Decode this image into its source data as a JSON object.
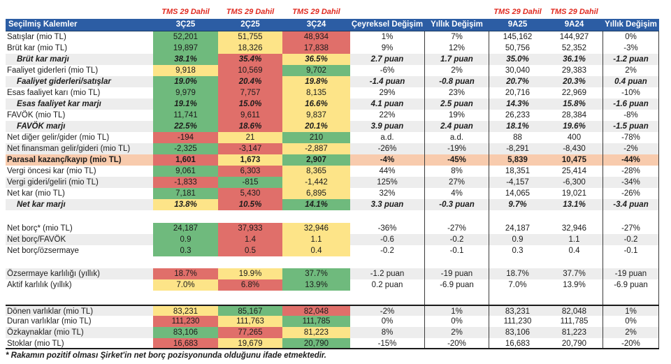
{
  "colors": {
    "green": "#6fba7d",
    "yellow": "#fde488",
    "red": "#e06f6a",
    "orange": "#f8cbad",
    "header_blue": "#2c5da4",
    "tms_red": "#e02a20",
    "stripe": "#ededed"
  },
  "chart_data": {
    "type": "table",
    "tms_note": "TMS 29 Dahil",
    "columns": [
      "Seçilmiş Kalemler",
      "3Ç25",
      "2Ç25",
      "3Ç24",
      "Çeyreksel Değişim",
      "Yıllık Değişim",
      "9A25",
      "9A24",
      "Yıllık Değişim"
    ],
    "rows": [
      {
        "label": "Satışlar (mio TL)",
        "variant": "normal",
        "stripe": false,
        "qcolors": [
          "green",
          "yellow",
          "red"
        ],
        "cells": [
          "52,201",
          "51,755",
          "48,934",
          "1%",
          "7%",
          "145,162",
          "144,927",
          "0%"
        ]
      },
      {
        "label": "Brüt kar (mio TL)",
        "variant": "normal",
        "stripe": false,
        "qcolors": [
          "green",
          "yellow",
          "red"
        ],
        "cells": [
          "19,897",
          "18,326",
          "17,838",
          "9%",
          "12%",
          "50,756",
          "52,352",
          "-3%"
        ]
      },
      {
        "label": "Brüt kar marjı",
        "variant": "margin",
        "stripe": true,
        "qcolors": [
          "green",
          "red",
          "yellow"
        ],
        "cells": [
          "38.1%",
          "35.4%",
          "36.5%",
          "2.7 puan",
          "1.7 puan",
          "35.0%",
          "36.1%",
          "-1.2 puan"
        ]
      },
      {
        "label": "Faaliyet giderleri (mio TL)",
        "variant": "normal",
        "stripe": false,
        "qcolors": [
          "yellow",
          "red",
          "green"
        ],
        "cells": [
          "9,918",
          "10,569",
          "9,702",
          "-6%",
          "2%",
          "30,040",
          "29,383",
          "2%"
        ]
      },
      {
        "label": "Faaliyet giderleri/satışlar",
        "variant": "margin",
        "stripe": true,
        "qcolors": [
          "green",
          "red",
          "yellow"
        ],
        "cells": [
          "19.0%",
          "20.4%",
          "19.8%",
          "-1.4 puan",
          "-0.8 puan",
          "20.7%",
          "20.3%",
          "0.4 puan"
        ]
      },
      {
        "label": "Esas faaliyet karı (mio TL)",
        "variant": "normal",
        "stripe": false,
        "qcolors": [
          "green",
          "red",
          "yellow"
        ],
        "cells": [
          "9,979",
          "7,757",
          "8,135",
          "29%",
          "23%",
          "20,716",
          "22,969",
          "-10%"
        ]
      },
      {
        "label": "Esas faaliyet kar marjı",
        "variant": "margin",
        "stripe": true,
        "qcolors": [
          "green",
          "red",
          "yellow"
        ],
        "cells": [
          "19.1%",
          "15.0%",
          "16.6%",
          "4.1 puan",
          "2.5 puan",
          "14.3%",
          "15.8%",
          "-1.6 puan"
        ]
      },
      {
        "label": "FAVÖK (mio TL)",
        "variant": "normal",
        "stripe": false,
        "qcolors": [
          "green",
          "red",
          "yellow"
        ],
        "cells": [
          "11,741",
          "9,611",
          "9,837",
          "22%",
          "19%",
          "26,233",
          "28,384",
          "-8%"
        ]
      },
      {
        "label": "FAVÖK marjı",
        "variant": "margin",
        "stripe": true,
        "qcolors": [
          "green",
          "red",
          "yellow"
        ],
        "cells": [
          "22.5%",
          "18.6%",
          "20.1%",
          "3.9 puan",
          "2.4 puan",
          "18.1%",
          "19.6%",
          "-1.5 puan"
        ]
      },
      {
        "label": "Net diğer gelir/gider (mio TL)",
        "variant": "normal",
        "stripe": false,
        "qcolors": [
          "red",
          "yellow",
          "green"
        ],
        "cells": [
          "-194",
          "21",
          "210",
          "a.d.",
          "a.d.",
          "88",
          "400",
          "-78%"
        ]
      },
      {
        "label": "Net finansman gelir/gideri (mio TL)",
        "variant": "normal",
        "stripe": true,
        "qcolors": [
          "green",
          "red",
          "yellow"
        ],
        "cells": [
          "-2,325",
          "-3,147",
          "-2,887",
          "-26%",
          "-19%",
          "-8,291",
          "-8,430",
          "-2%"
        ]
      },
      {
        "label": "Parasal kazanç/kayıp (mio TL)",
        "variant": "highlight",
        "stripe": false,
        "qcolors": [
          "red",
          "yellow",
          "green"
        ],
        "cells": [
          "1,601",
          "1,673",
          "2,907",
          "-4%",
          "-45%",
          "5,839",
          "10,475",
          "-44%"
        ]
      },
      {
        "label": "Vergi öncesi kar (mio TL)",
        "variant": "normal",
        "stripe": false,
        "qcolors": [
          "green",
          "red",
          "yellow"
        ],
        "cells": [
          "9,061",
          "6,303",
          "8,365",
          "44%",
          "8%",
          "18,351",
          "25,414",
          "-28%"
        ]
      },
      {
        "label": "Vergi gideri/geliri (mio TL)",
        "variant": "normal",
        "stripe": true,
        "qcolors": [
          "red",
          "green",
          "yellow"
        ],
        "cells": [
          "-1,833",
          "-815",
          "-1,442",
          "125%",
          "27%",
          "-4,157",
          "-6,300",
          "-34%"
        ]
      },
      {
        "label": "Net kar (mio TL)",
        "variant": "normal",
        "stripe": false,
        "qcolors": [
          "green",
          "red",
          "yellow"
        ],
        "cells": [
          "7,181",
          "5,430",
          "6,895",
          "32%",
          "4%",
          "14,065",
          "19,021",
          "-26%"
        ]
      },
      {
        "label": "Net kar marjı",
        "variant": "margin",
        "stripe": true,
        "qcolors": [
          "yellow",
          "red",
          "green"
        ],
        "cells": [
          "13.8%",
          "10.5%",
          "14.1%",
          "3.3 puan",
          "-0.3 puan",
          "9.7%",
          "13.1%",
          "-3.4 puan"
        ]
      },
      {
        "spacer": true,
        "h": 18
      },
      {
        "label": "Net borç* (mio TL)",
        "variant": "normal",
        "stripe": false,
        "qcolors": [
          "green",
          "red",
          "yellow"
        ],
        "cells": [
          "24,187",
          "37,933",
          "32,946",
          "-36%",
          "-27%",
          "24,187",
          "32,946",
          "-27%"
        ]
      },
      {
        "label": "Net borç/FAVÖK",
        "variant": "normal",
        "stripe": true,
        "qcolors": [
          "green",
          "red",
          "yellow"
        ],
        "cells": [
          "0.9",
          "1.4",
          "1.1",
          "-0.6",
          "-0.2",
          "0.9",
          "1.1",
          "-0.2"
        ]
      },
      {
        "label": "Net borç/özsermaye",
        "variant": "normal",
        "stripe": false,
        "qcolors": [
          "green",
          "red",
          "yellow"
        ],
        "cells": [
          "0.3",
          "0.5",
          "0.4",
          "-0.2",
          "-0.1",
          "0.3",
          "0.4",
          "-0.1"
        ]
      },
      {
        "spacer": true,
        "h": 17
      },
      {
        "label": "Özsermaye karlılığı (yıllık)",
        "variant": "normal",
        "stripe": true,
        "qcolors": [
          "red",
          "yellow",
          "green"
        ],
        "cells": [
          "18.7%",
          "19.9%",
          "37.7%",
          "-1.2 puan",
          "-19 puan",
          "18.7%",
          "37.7%",
          "-19 puan"
        ]
      },
      {
        "label": "Aktif karlılık (yıllık)",
        "variant": "normal",
        "stripe": false,
        "qcolors": [
          "yellow",
          "red",
          "green"
        ],
        "cells": [
          "7.0%",
          "6.8%",
          "13.9%",
          "0.2 puan",
          "-6.9 puan",
          "7.0%",
          "13.9%",
          "-6.9 puan"
        ]
      },
      {
        "spacer": true,
        "h": 20
      },
      {
        "label": "Dönen varlıklar (mio TL)",
        "variant": "normal",
        "stripe": true,
        "section": "top",
        "qcolors": [
          "yellow",
          "green",
          "red"
        ],
        "cells": [
          "83,231",
          "85,167",
          "82,048",
          "-2%",
          "1%",
          "83,231",
          "82,048",
          "1%"
        ]
      },
      {
        "label": "Duran varlıklar (mio TL)",
        "variant": "normal",
        "stripe": false,
        "qcolors": [
          "red",
          "yellow",
          "green"
        ],
        "cells": [
          "111,230",
          "111,763",
          "111,785",
          "0%",
          "0%",
          "111,230",
          "111,785",
          "0%"
        ]
      },
      {
        "label": "Özkaynaklar (mio TL)",
        "variant": "normal",
        "stripe": true,
        "qcolors": [
          "green",
          "red",
          "yellow"
        ],
        "cells": [
          "83,106",
          "77,265",
          "81,223",
          "8%",
          "2%",
          "83,106",
          "81,223",
          "2%"
        ]
      },
      {
        "label": "Stoklar (mio TL)",
        "variant": "normal",
        "stripe": false,
        "section": "bottom",
        "qcolors": [
          "red",
          "yellow",
          "green"
        ],
        "cells": [
          "16,683",
          "19,679",
          "20,790",
          "-15%",
          "-20%",
          "16,683",
          "20,790",
          "-20%"
        ]
      }
    ],
    "footnote": "* Rakamın pozitif olması Şirket'in net borç pozisyonunda olduğunu ifade etmektedir."
  }
}
